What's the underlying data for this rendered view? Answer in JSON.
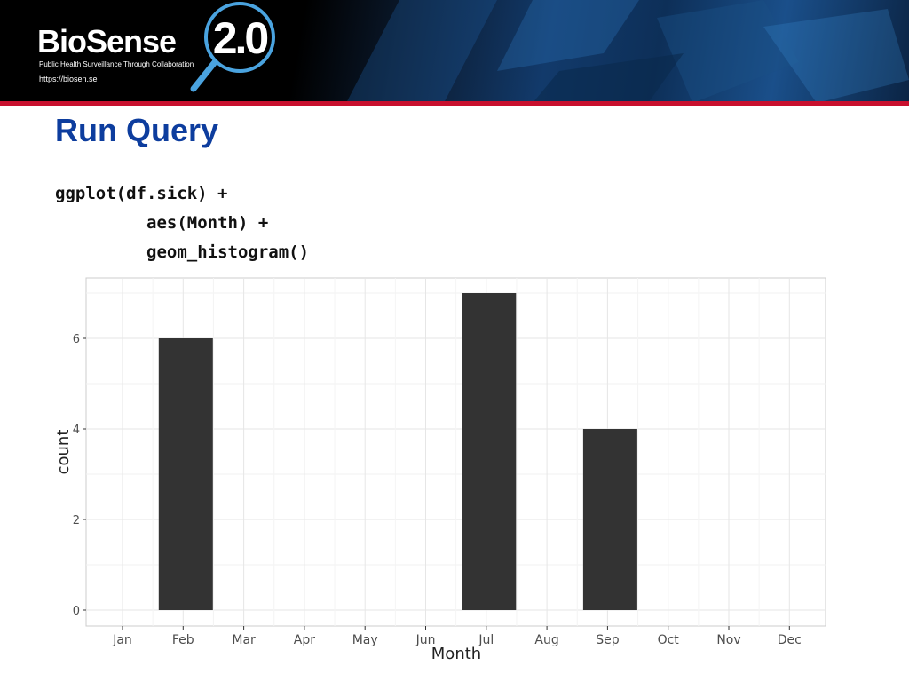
{
  "header": {
    "brand_name": "BioSense",
    "version": "2.0",
    "tagline": "Public Health Surveillance Through Collaboration",
    "url": "https://biosen.se",
    "colors": {
      "banner": "#000000",
      "accent_line": "#c8102e",
      "logo_ring": "#4aa3df"
    }
  },
  "slide": {
    "title": "Run Query",
    "title_color": "#0d3d9e",
    "code_lines": [
      "ggplot(df.sick) +",
      "aes(Month) +",
      "geom_histogram()"
    ]
  },
  "chart_data": {
    "type": "bar",
    "categories": [
      "Jan",
      "Feb",
      "Mar",
      "Apr",
      "May",
      "Jun",
      "Jul",
      "Aug",
      "Sep",
      "Oct",
      "Nov",
      "Dec"
    ],
    "values": [
      0,
      6,
      0,
      0,
      0,
      0,
      7,
      0,
      4,
      0,
      0,
      0
    ],
    "title": "",
    "xlabel": "Month",
    "ylabel": "count",
    "ylim": [
      0,
      7.35
    ],
    "yticks": [
      0,
      2,
      4,
      6
    ],
    "grid": true,
    "bar_color": "#333333"
  }
}
